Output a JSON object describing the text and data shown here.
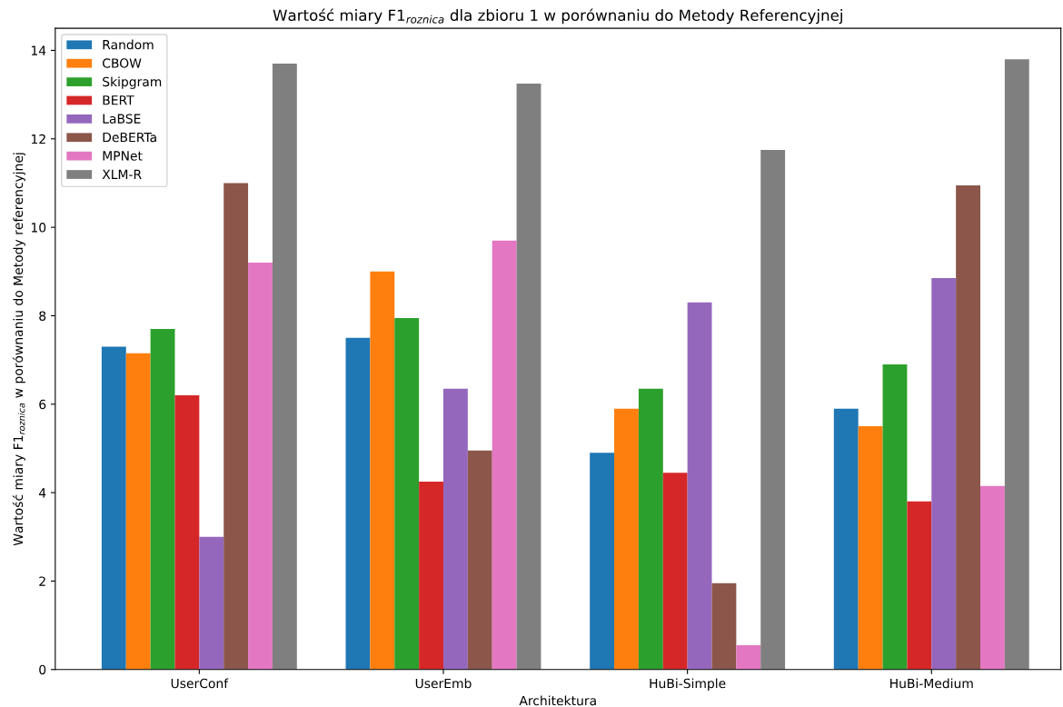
{
  "chart_data": {
    "type": "bar",
    "title": "Wartość miary F1$_{roznica}$ dla zbioru 1 w porównaniu do Metody Referencyjnej",
    "xlabel": "Architektura",
    "ylabel": "Wartość miary F1$_{roznica}$ w porównaniu do Metody referencyjnej",
    "categories": [
      "UserConf",
      "UserEmb",
      "HuBi-Simple",
      "HuBi-Medium"
    ],
    "series": [
      {
        "name": "Random",
        "color": "#1f77b4",
        "values": [
          7.3,
          7.5,
          4.9,
          5.9
        ]
      },
      {
        "name": "CBOW",
        "color": "#ff7f0e",
        "values": [
          7.15,
          9.0,
          5.9,
          5.5
        ]
      },
      {
        "name": "Skipgram",
        "color": "#2ca02c",
        "values": [
          7.7,
          7.95,
          6.35,
          6.9
        ]
      },
      {
        "name": "BERT",
        "color": "#d62728",
        "values": [
          6.2,
          4.25,
          4.45,
          3.8
        ]
      },
      {
        "name": "LaBSE",
        "color": "#9467bd",
        "values": [
          3.0,
          6.35,
          8.3,
          8.85
        ]
      },
      {
        "name": "DeBERTa",
        "color": "#8c564b",
        "values": [
          11.0,
          4.95,
          1.95,
          10.95
        ]
      },
      {
        "name": "MPNet",
        "color": "#e377c2",
        "values": [
          9.2,
          9.7,
          0.55,
          4.15
        ]
      },
      {
        "name": "XLM-R",
        "color": "#7f7f7f",
        "values": [
          13.7,
          13.25,
          11.75,
          13.8
        ]
      }
    ],
    "ylim": [
      0,
      14.5
    ],
    "yticks": [
      0,
      2,
      4,
      6,
      8,
      10,
      12,
      14
    ],
    "grid": false,
    "legend": "top left"
  }
}
